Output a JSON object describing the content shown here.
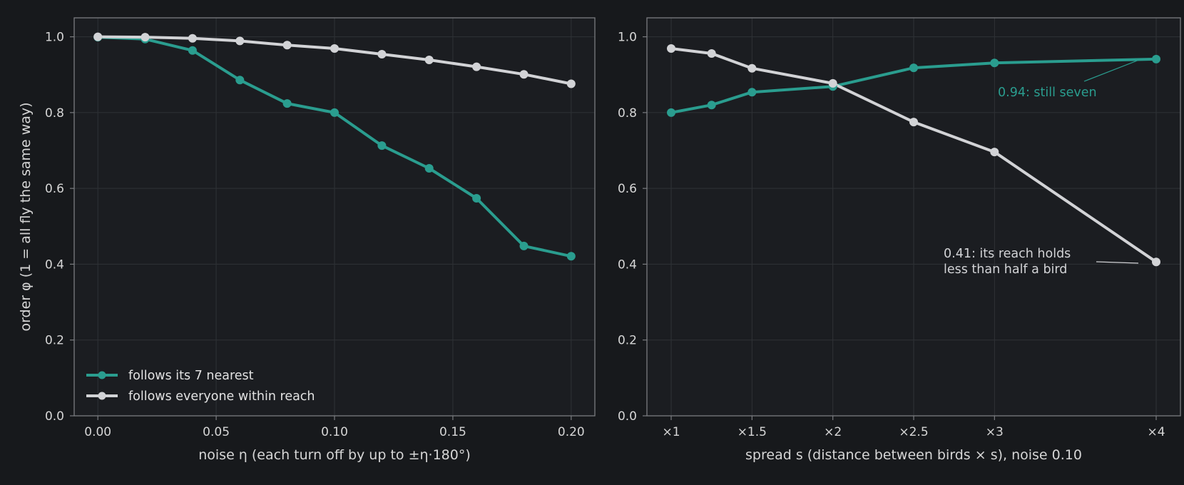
{
  "colors": {
    "background": "#17191c",
    "plot_background": "#1b1d21",
    "frame": "#7a7c80",
    "grid": "#2f3236",
    "text": "#d6d6d6",
    "teal": "#2a9d8f",
    "light": "#d2d3d6"
  },
  "chart_data": [
    {
      "type": "line",
      "xlabel": "noise η (each turn off by up to ±η·180°)",
      "ylabel": "order φ (1 = all fly the same way)",
      "xlim": [
        -0.01,
        0.21
      ],
      "ylim": [
        0,
        1.05
      ],
      "xticks": [
        0.0,
        0.05,
        0.1,
        0.15,
        0.2
      ],
      "xtick_labels": [
        "0.00",
        "0.05",
        "0.10",
        "0.15",
        "0.20"
      ],
      "yticks": [
        0.0,
        0.2,
        0.4,
        0.6,
        0.8,
        1.0
      ],
      "ytick_labels": [
        "0.0",
        "0.2",
        "0.4",
        "0.6",
        "0.8",
        "1.0"
      ],
      "grid": true,
      "legend_placement": "lower-left",
      "x": [
        0.0,
        0.02,
        0.04,
        0.06,
        0.08,
        0.1,
        0.12,
        0.14,
        0.16,
        0.18,
        0.2
      ],
      "series": [
        {
          "name": "follows its 7 nearest",
          "color": "#2a9d8f",
          "values": [
            0.999,
            0.994,
            0.964,
            0.886,
            0.824,
            0.8,
            0.713,
            0.653,
            0.574,
            0.448,
            0.421
          ]
        },
        {
          "name": "follows everyone within reach",
          "color": "#d2d3d6",
          "values": [
            1.0,
            0.999,
            0.996,
            0.989,
            0.978,
            0.969,
            0.954,
            0.939,
            0.921,
            0.901,
            0.876
          ]
        }
      ]
    },
    {
      "type": "line",
      "xlabel": "spread s (distance between birds × s), noise 0.10",
      "ylabel": "",
      "xlim": [
        0.85,
        4.15
      ],
      "ylim": [
        0,
        1.05
      ],
      "xticks": [
        1,
        1.5,
        2,
        2.5,
        3,
        4
      ],
      "xtick_labels": [
        "×1",
        "×1.5",
        "×2",
        "×2.5",
        "×3",
        "×4"
      ],
      "yticks": [
        0.0,
        0.2,
        0.4,
        0.6,
        0.8,
        1.0
      ],
      "ytick_labels": [
        "0.0",
        "0.2",
        "0.4",
        "0.6",
        "0.8",
        "1.0"
      ],
      "grid": true,
      "x": [
        1,
        1.25,
        1.5,
        2,
        2.5,
        3,
        4
      ],
      "series": [
        {
          "name": "follows its 7 nearest",
          "color": "#2a9d8f",
          "values": [
            0.8,
            0.82,
            0.854,
            0.869,
            0.918,
            0.931,
            0.941
          ]
        },
        {
          "name": "follows everyone within reach",
          "color": "#d2d3d6",
          "values": [
            0.969,
            0.956,
            0.917,
            0.877,
            0.775,
            0.696,
            0.406
          ]
        }
      ],
      "annotations": [
        {
          "text": "0.94: still seven",
          "color": "#2a9d8f",
          "x": 4,
          "y": 0.941
        },
        {
          "lines": [
            "0.41: its reach holds",
            "less than half a bird"
          ],
          "color": "#d2d3d6",
          "x": 4,
          "y": 0.406
        }
      ]
    }
  ]
}
